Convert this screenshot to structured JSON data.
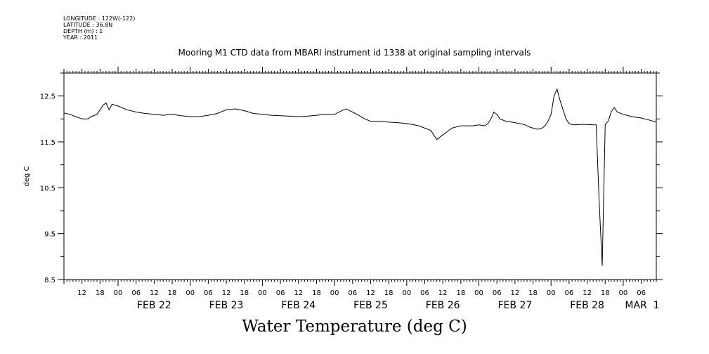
{
  "header": {
    "longitude": "LONGITUDE : 122W(-122)",
    "latitude": "LATITUDE : 36.8N",
    "depth": "DEPTH (m) : 1",
    "year": "YEAR : 2011"
  },
  "chart_data": {
    "type": "line",
    "title": "Mooring M1 CTD data from MBARI instrument id 1338 at original sampling intervals",
    "bottom_title": "Water Temperature (deg C)",
    "ylabel": "deg C",
    "xlabel": "",
    "ylim": [
      8.5,
      13.0
    ],
    "xlim": [
      "2011-02-21 06:00",
      "2011-03-01 11:00"
    ],
    "y_tick_labels": [
      "8.5",
      "9.5",
      "10.5",
      "11.5",
      "12.5"
    ],
    "x_hour_ticks": [
      "12",
      "18",
      "00",
      "06",
      "12",
      "18",
      "00",
      "06",
      "12",
      "18",
      "00",
      "06",
      "12",
      "18",
      "00",
      "06",
      "12",
      "18",
      "00",
      "06",
      "12",
      "18",
      "00",
      "06",
      "12",
      "18",
      "00",
      "06",
      "12",
      "18",
      "00",
      "06"
    ],
    "x_day_labels": [
      "FEB 22",
      "FEB 23",
      "FEB 24",
      "FEB 25",
      "FEB 26",
      "FEB 27",
      "FEB 28",
      "MAR  1"
    ],
    "grid": false,
    "series": [
      {
        "x": [
          "2011-02-21 06:00",
          "2011-02-21 08:00",
          "2011-02-21 10:00",
          "2011-02-21 12:00",
          "2011-02-21 14:00",
          "2011-02-21 15:00",
          "2011-02-21 17:00",
          "2011-02-21 18:00",
          "2011-02-21 19:00",
          "2011-02-21 20:00",
          "2011-02-21 21:00",
          "2011-02-21 22:00",
          "2011-02-22 00:00",
          "2011-02-22 03:00",
          "2011-02-22 06:00",
          "2011-02-22 09:00",
          "2011-02-22 12:00",
          "2011-02-22 15:00",
          "2011-02-22 18:00",
          "2011-02-22 21:00",
          "2011-02-23 00:00",
          "2011-02-23 03:00",
          "2011-02-23 06:00",
          "2011-02-23 09:00",
          "2011-02-23 12:00",
          "2011-02-23 15:00",
          "2011-02-23 18:00",
          "2011-02-23 21:00",
          "2011-02-24 00:00",
          "2011-02-24 03:00",
          "2011-02-24 06:00",
          "2011-02-24 09:00",
          "2011-02-24 12:00",
          "2011-02-24 15:00",
          "2011-02-24 18:00",
          "2011-02-24 21:00",
          "2011-02-25 00:00",
          "2011-02-25 03:00",
          "2011-02-25 04:00",
          "2011-02-25 05:00",
          "2011-02-25 06:00",
          "2011-02-25 08:00",
          "2011-02-25 10:00",
          "2011-02-25 12:00",
          "2011-02-25 15:00",
          "2011-02-25 18:00",
          "2011-02-25 21:00",
          "2011-02-26 00:00",
          "2011-02-26 02:00",
          "2011-02-26 04:00",
          "2011-02-26 06:00",
          "2011-02-26 08:00",
          "2011-02-26 10:00",
          "2011-02-26 12:00",
          "2011-02-26 15:00",
          "2011-02-26 18:00",
          "2011-02-26 21:00",
          "2011-02-26 22:00",
          "2011-02-27 00:00",
          "2011-02-27 02:00",
          "2011-02-27 03:00",
          "2011-02-27 04:00",
          "2011-02-27 05:00",
          "2011-02-27 06:00",
          "2011-02-27 07:00",
          "2011-02-27 09:00",
          "2011-02-27 12:00",
          "2011-02-27 15:00",
          "2011-02-27 16:00",
          "2011-02-27 17:00",
          "2011-02-27 18:00",
          "2011-02-27 19:00",
          "2011-02-27 20:00",
          "2011-02-27 21:00",
          "2011-02-27 22:00",
          "2011-02-27 23:00",
          "2011-02-28 00:00",
          "2011-02-28 01:00",
          "2011-02-28 02:00",
          "2011-02-28 03:00",
          "2011-02-28 04:00",
          "2011-02-28 05:00",
          "2011-02-28 06:00",
          "2011-02-28 07:00",
          "2011-02-28 08:00",
          "2011-02-28 09:00",
          "2011-02-28 10:00",
          "2011-02-28 12:00",
          "2011-02-28 14:00",
          "2011-02-28 15:00",
          "2011-02-28 16:00",
          "2011-02-28 17:00",
          "2011-02-28 18:00",
          "2011-02-28 19:00",
          "2011-02-28 20:00",
          "2011-02-28 21:00",
          "2011-02-28 22:00",
          "2011-03-01 00:00",
          "2011-03-01 03:00",
          "2011-03-01 06:00",
          "2011-03-01 09:00",
          "2011-03-01 11:00"
        ],
        "y": [
          12.13,
          12.1,
          12.05,
          12.0,
          12.0,
          12.05,
          12.1,
          12.2,
          12.3,
          12.35,
          12.2,
          12.32,
          12.28,
          12.2,
          12.15,
          12.12,
          12.1,
          12.08,
          12.1,
          12.07,
          12.05,
          12.05,
          12.08,
          12.12,
          12.2,
          12.22,
          12.18,
          12.12,
          12.1,
          12.08,
          12.07,
          12.06,
          12.05,
          12.06,
          12.08,
          12.1,
          12.1,
          12.2,
          12.22,
          12.18,
          12.15,
          12.08,
          12.0,
          11.95,
          11.95,
          11.93,
          11.92,
          11.9,
          11.88,
          11.85,
          11.8,
          11.75,
          11.55,
          11.65,
          11.8,
          11.85,
          11.85,
          11.85,
          11.87,
          11.85,
          11.9,
          12.0,
          12.15,
          12.1,
          12.0,
          11.95,
          11.92,
          11.88,
          11.85,
          11.82,
          11.8,
          11.78,
          11.78,
          11.8,
          11.85,
          11.95,
          12.1,
          12.5,
          12.65,
          12.4,
          12.2,
          12.0,
          11.9,
          11.88,
          11.87,
          11.88,
          11.88,
          11.88,
          11.87,
          11.87,
          10.2,
          8.8,
          11.88,
          11.95,
          12.15,
          12.25,
          12.15,
          12.1,
          12.05,
          12.02,
          11.97,
          11.93
        ]
      }
    ]
  }
}
